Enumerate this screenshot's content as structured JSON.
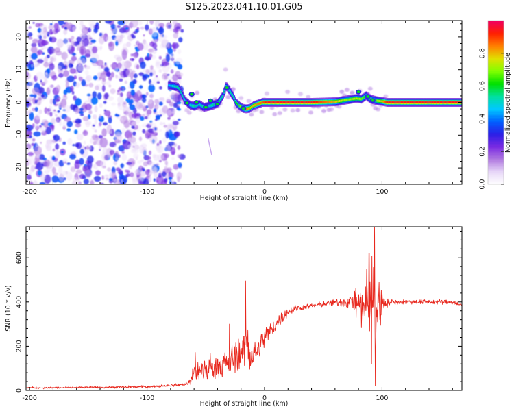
{
  "figure_title": "S125.2023.041.10.01.G05",
  "chart_data": [
    {
      "type": "heatmap",
      "xlabel": "Height of straight line (km)",
      "ylabel": "Frequency (Hz)",
      "xlim": [
        -203,
        168
      ],
      "ylim": [
        -25,
        25
      ],
      "x_ticks": [
        -200,
        -100,
        0,
        100
      ],
      "x_tick_labels": [
        "-200",
        "-100",
        "0",
        "100"
      ],
      "y_ticks": [
        -20,
        -10,
        0,
        10,
        20
      ],
      "y_tick_labels": [
        "-20",
        "-10",
        "0",
        "10",
        "20"
      ],
      "colorbar": {
        "label": "Normalized spectral amplitude",
        "range": [
          0,
          1
        ],
        "ticks": [
          0.0,
          0.2,
          0.4,
          0.6,
          0.8
        ],
        "tick_labels": [
          "0.0",
          "0.2",
          "0.4",
          "0.6",
          "0.8"
        ],
        "colors": [
          "#ffffff",
          "#e8d8f8",
          "#b07ae0",
          "#7a2be2",
          "#2b1fe6",
          "#0060ff",
          "#00c8ff",
          "#00e0a0",
          "#00e000",
          "#80ff00",
          "#e0e000",
          "#ff8000",
          "#ff2000",
          "#f00060"
        ]
      },
      "noise_region": {
        "x_range": [
          -203,
          -74
        ],
        "amplitude_max": 0.35
      },
      "ridge": {
        "x": [
          -82,
          -78,
          -74,
          -71,
          -68,
          -64,
          -60,
          -56,
          -52,
          -48,
          -44,
          -40,
          -36,
          -33,
          -30,
          -27,
          -25,
          -22,
          -19,
          -16,
          -13,
          -10,
          -6,
          -2,
          2,
          10,
          20,
          40,
          60,
          70,
          78,
          82,
          86,
          90,
          95,
          100,
          104,
          168
        ],
        "frequency": [
          5.2,
          5.0,
          4.6,
          2.8,
          0.5,
          -0.8,
          -1.2,
          -0.6,
          -1.5,
          -1.2,
          -0.8,
          -0.2,
          2.0,
          5.0,
          3.5,
          1.8,
          0.0,
          -1.0,
          -1.8,
          -2.0,
          -1.8,
          -1.0,
          -0.5,
          0.0,
          0.0,
          0.0,
          0.0,
          0.0,
          0.2,
          0.8,
          1.2,
          1.0,
          2.0,
          1.0,
          0.5,
          0.3,
          0.0,
          0.0
        ],
        "amplitude": [
          0.45,
          0.5,
          0.55,
          0.55,
          0.5,
          0.5,
          0.55,
          0.5,
          0.55,
          0.5,
          0.55,
          0.55,
          0.55,
          0.6,
          0.55,
          0.55,
          0.6,
          0.65,
          0.8,
          0.85,
          0.8,
          0.8,
          0.85,
          0.88,
          0.95,
          0.95,
          0.95,
          0.95,
          0.8,
          0.7,
          0.75,
          0.7,
          0.6,
          0.65,
          0.7,
          0.8,
          0.95,
          0.95
        ]
      }
    },
    {
      "type": "line",
      "xlabel": "Height of straight line (km)",
      "ylabel": "SNR (10 * v/v)",
      "xlim": [
        -203,
        168
      ],
      "ylim": [
        0,
        740
      ],
      "x_ticks": [
        -200,
        -100,
        0,
        100
      ],
      "x_tick_labels": [
        "-200",
        "-100",
        "0",
        "100"
      ],
      "y_ticks": [
        0,
        200,
        400,
        600
      ],
      "y_tick_labels": [
        "0",
        "200",
        "400",
        "600"
      ],
      "series": [
        {
          "color": "#e8281e",
          "x": [
            -203,
            -180,
            -160,
            -140,
            -120,
            -100,
            -90,
            -80,
            -70,
            -64,
            -60,
            -55,
            -50,
            -45,
            -40,
            -35,
            -30,
            -25,
            -20,
            -15,
            -12,
            -10,
            -5,
            0,
            5,
            10,
            15,
            20,
            25,
            30,
            40,
            50,
            60,
            70,
            75,
            80,
            85,
            88,
            90,
            93,
            95,
            97,
            100,
            105,
            110,
            120,
            130,
            140,
            150,
            160,
            168
          ],
          "values": [
            12,
            12,
            13,
            14,
            15,
            17,
            20,
            23,
            26,
            32,
            80,
            90,
            95,
            100,
            110,
            120,
            130,
            150,
            170,
            190,
            150,
            150,
            190,
            240,
            270,
            300,
            330,
            355,
            368,
            375,
            382,
            390,
            398,
            400,
            402,
            390,
            380,
            370,
            360,
            360,
            360,
            380,
            398,
            400,
            400,
            400,
            401,
            400,
            400,
            400,
            385
          ],
          "noise_amplitude": [
            4,
            4,
            4,
            4,
            5,
            5,
            5,
            5,
            6,
            10,
            40,
            45,
            50,
            55,
            55,
            55,
            55,
            55,
            60,
            90,
            60,
            50,
            45,
            40,
            35,
            30,
            25,
            18,
            15,
            12,
            10,
            12,
            15,
            25,
            40,
            70,
            100,
            140,
            170,
            200,
            200,
            150,
            60,
            15,
            10,
            10,
            10,
            10,
            10,
            10,
            10
          ],
          "spikes": [
            {
              "x": -16,
              "value": 495
            },
            {
              "x": -30,
              "value": 300
            },
            {
              "x": -59,
              "value": 172
            },
            {
              "x": 89,
              "value": 620
            },
            {
              "x": 93.5,
              "value": 740
            },
            {
              "x": 94.3,
              "value": 20
            },
            {
              "x": 91,
              "value": 120
            }
          ]
        }
      ]
    }
  ]
}
